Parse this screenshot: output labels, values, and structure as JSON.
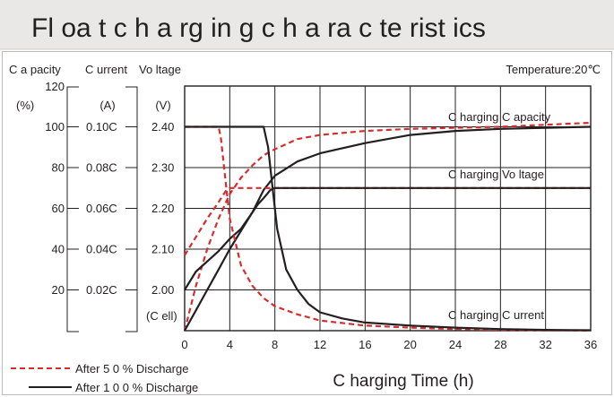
{
  "chart_data": {
    "type": "line",
    "title": "Fl oa t c h a rg in g c h a ra c te rist ics",
    "temperature": "Temperature:20℃",
    "xlabel": "C harging Time (h)",
    "x_ticks": [
      "0",
      "4",
      "8",
      "12",
      "16",
      "20",
      "24",
      "28",
      "32",
      "36"
    ],
    "xlim": [
      0,
      36
    ],
    "axes": {
      "capacity": {
        "header": "C a pacity",
        "unit": "(%)",
        "top_tick": "120",
        "ticks": [
          "100",
          "80",
          "60",
          "40",
          "20"
        ],
        "range": [
          0,
          120
        ]
      },
      "current": {
        "header": "C urrent",
        "unit": "(A)",
        "ticks": [
          "0.10C",
          "0.08C",
          "0.06C",
          "0.04C",
          "0.02C"
        ],
        "range": [
          0,
          0.12
        ]
      },
      "voltage": {
        "header": "Vo ltage",
        "unit": "(V)",
        "ticks": [
          "2.40",
          "2.30",
          "2.20",
          "2.10",
          "2.00"
        ],
        "cell_label": "(C ell)",
        "range": [
          1.9,
          2.5
        ]
      }
    },
    "curve_labels": {
      "capacity": "C harging C apacity",
      "voltage": "C harging Vo ltage",
      "current": "C harging C urrent"
    },
    "legend": {
      "position": "bottom-left",
      "dashed": "After 5 0 % Discharge",
      "solid": "After 1 0 0 % Discharge"
    },
    "series": [
      {
        "legend": "After 5 0 % Discharge",
        "style": "dashed",
        "quantity": "capacity",
        "axis": "capacity",
        "x": [
          0,
          1,
          2,
          3,
          4,
          5,
          6,
          7,
          8,
          10,
          12,
          16,
          20,
          24,
          28,
          32,
          36
        ],
        "y": [
          0,
          22,
          40,
          55,
          67,
          75,
          81,
          86,
          89,
          94,
          96,
          98,
          99,
          99.5,
          100,
          101,
          102
        ]
      },
      {
        "legend": "After 1 0 0 % Discharge",
        "style": "solid",
        "quantity": "capacity",
        "axis": "capacity",
        "x": [
          0,
          1,
          2,
          3,
          4,
          5,
          6,
          7,
          8,
          10,
          12,
          16,
          20,
          24,
          28,
          32,
          36
        ],
        "y": [
          0,
          10,
          20,
          30,
          40,
          49,
          58,
          69,
          76,
          83,
          87,
          92,
          96,
          98,
          99,
          99.5,
          100
        ]
      },
      {
        "legend": "After 5 0 % Discharge",
        "style": "dashed",
        "quantity": "voltage",
        "axis": "voltage",
        "x": [
          0,
          1,
          2,
          3,
          3.7,
          4,
          36
        ],
        "y": [
          2.085,
          2.13,
          2.175,
          2.215,
          2.245,
          2.25,
          2.25
        ]
      },
      {
        "legend": "After 1 0 0 % Discharge",
        "style": "solid",
        "quantity": "voltage",
        "axis": "voltage",
        "x": [
          0,
          1,
          2,
          3,
          4,
          5,
          6,
          6.5,
          7,
          7.3,
          7.6,
          8,
          36
        ],
        "y": [
          2.0,
          2.045,
          2.07,
          2.095,
          2.125,
          2.15,
          2.19,
          2.21,
          2.225,
          2.235,
          2.245,
          2.25,
          2.25
        ]
      },
      {
        "legend": "After 5 0 % Discharge",
        "style": "dashed",
        "quantity": "current",
        "axis": "current",
        "x": [
          0,
          3,
          3.2,
          3.5,
          4,
          5,
          6,
          7,
          8,
          10,
          12,
          16,
          20,
          24,
          28,
          32,
          36
        ],
        "y": [
          0.1,
          0.1,
          0.095,
          0.08,
          0.055,
          0.032,
          0.022,
          0.016,
          0.012,
          0.008,
          0.005,
          0.0025,
          0.0015,
          0.0008,
          0.0004,
          0.0002,
          0.0001
        ]
      },
      {
        "legend": "After 1 0 0 % Discharge",
        "style": "solid",
        "quantity": "current",
        "axis": "current",
        "x": [
          0,
          7,
          7.4,
          7.8,
          8.2,
          9,
          10,
          11,
          12,
          14,
          16,
          20,
          24,
          28,
          32,
          36
        ],
        "y": [
          0.1,
          0.1,
          0.09,
          0.07,
          0.05,
          0.03,
          0.02,
          0.013,
          0.009,
          0.006,
          0.004,
          0.0025,
          0.0015,
          0.0008,
          0.0004,
          0.0002
        ]
      }
    ],
    "colors": {
      "banner_bg": "#e9e8e6",
      "text": "#231f20",
      "grid": "#231f20",
      "dashed_series": "#d92c2c",
      "solid_series": "#231f20"
    },
    "grid": true
  }
}
